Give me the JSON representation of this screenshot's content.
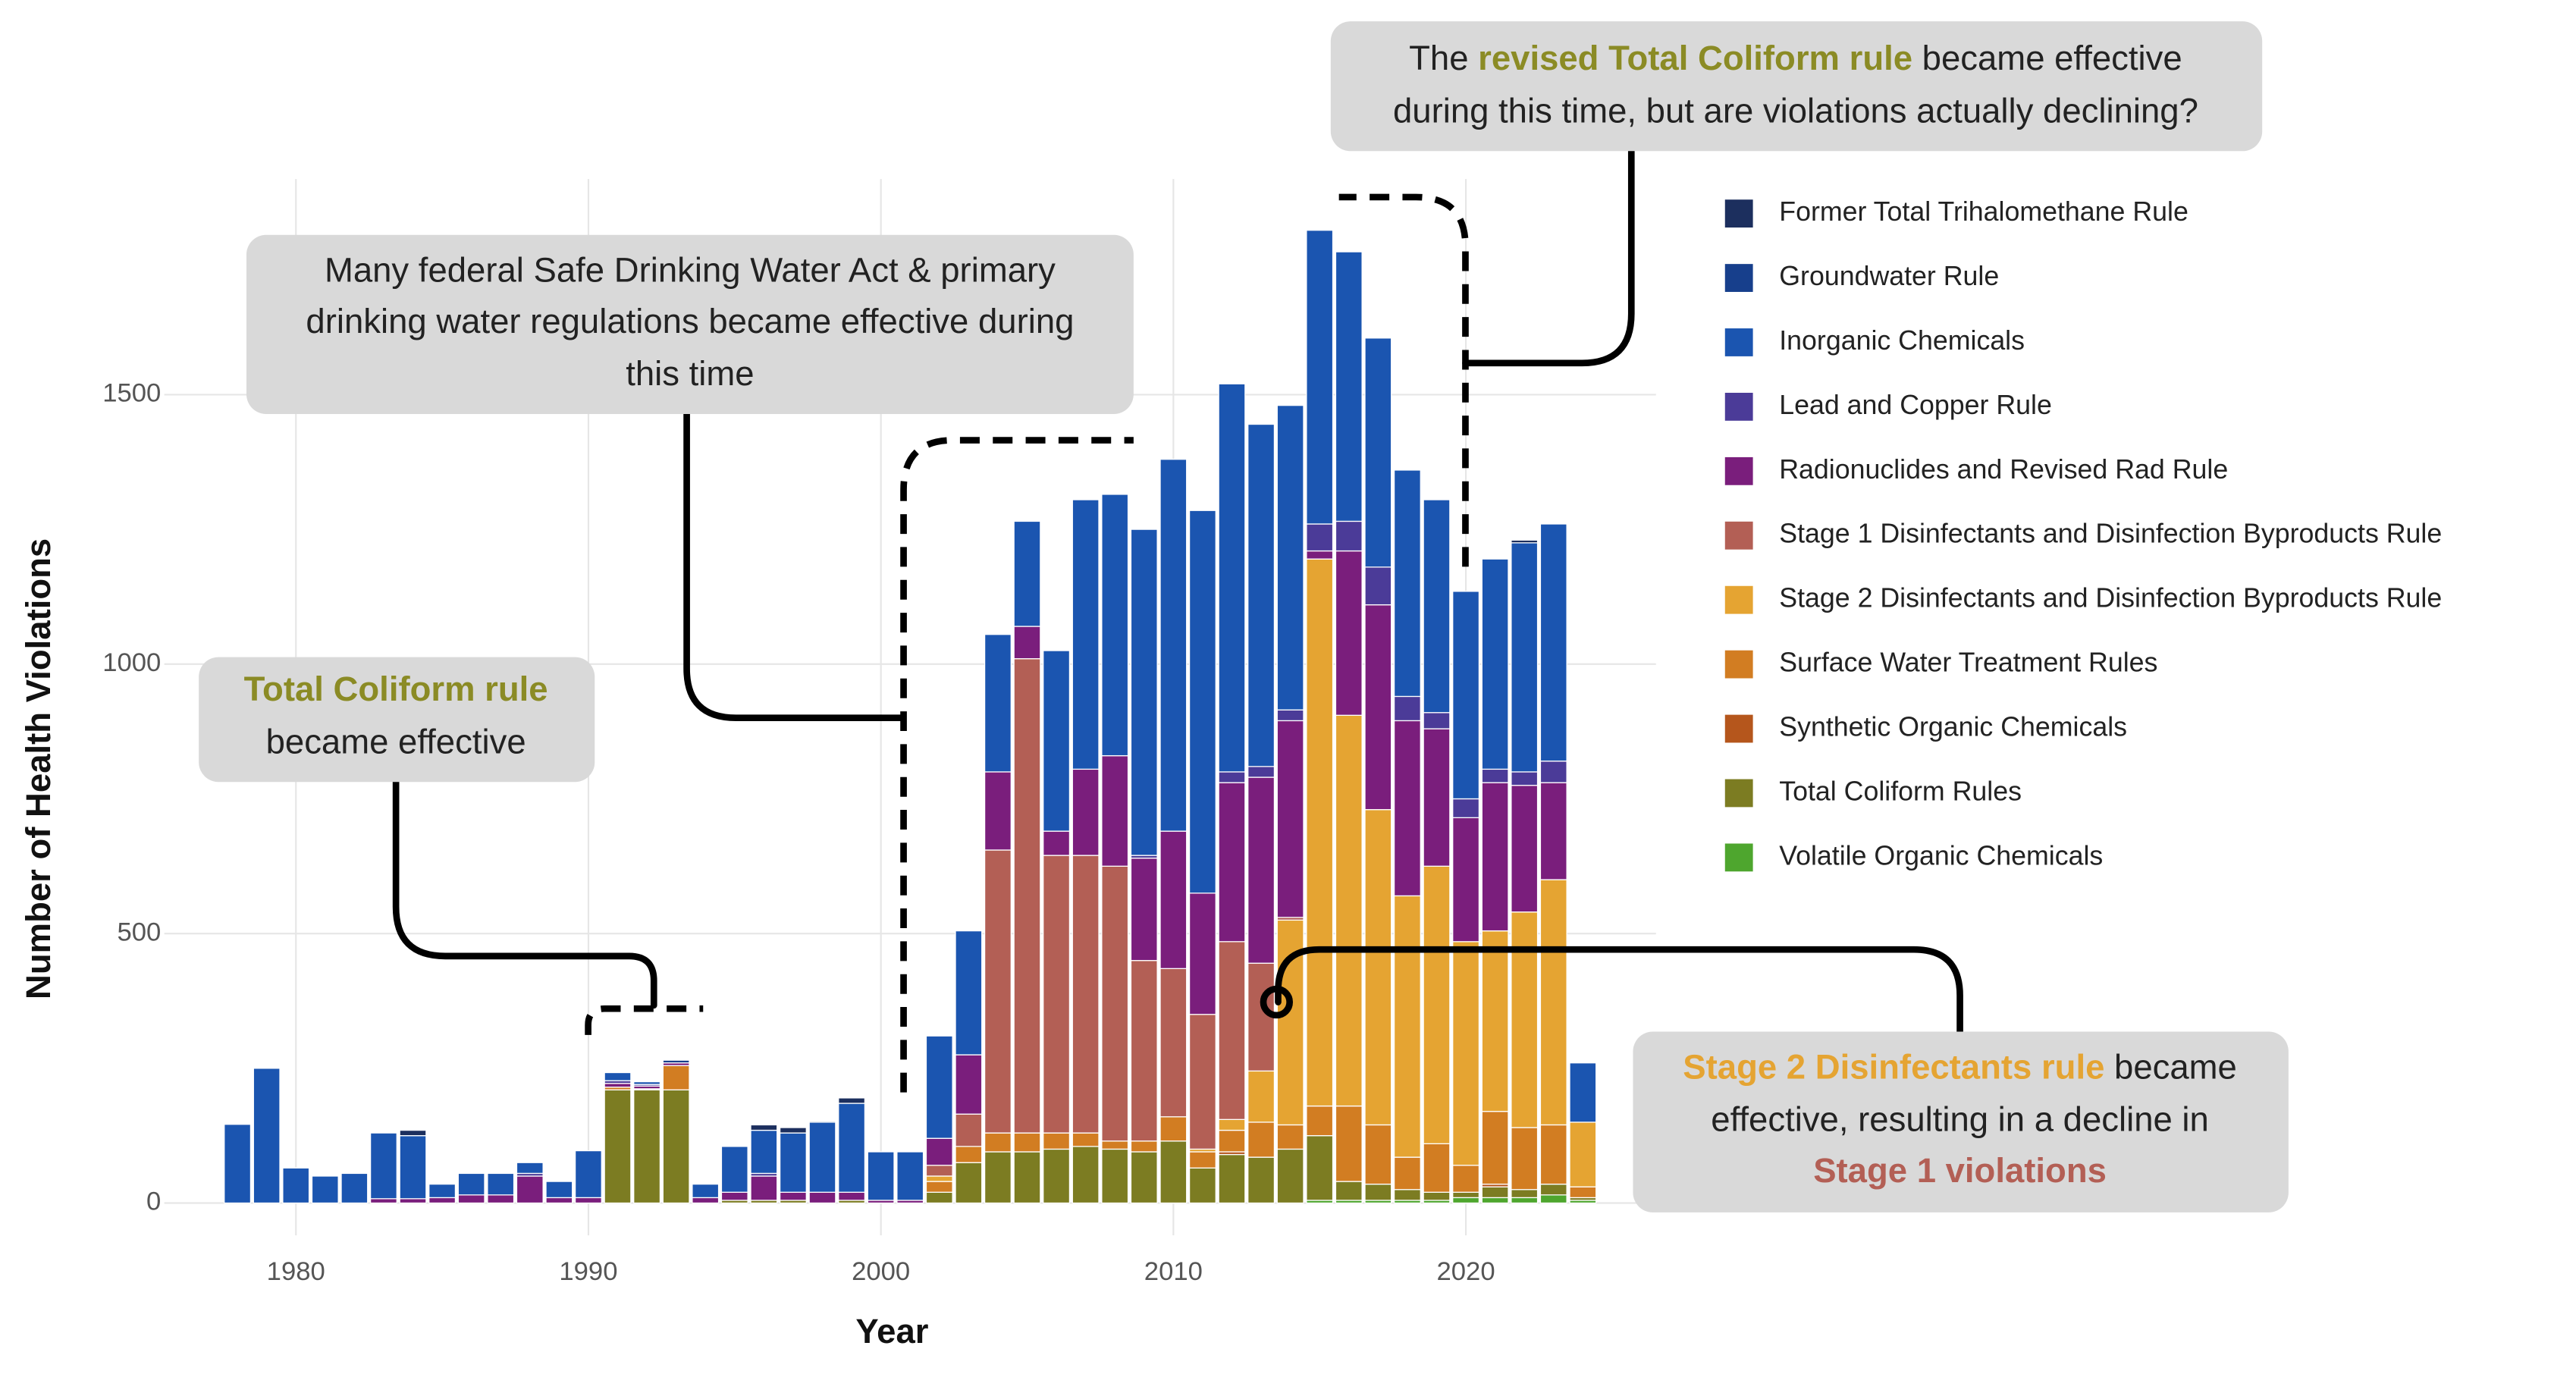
{
  "chart_data": {
    "type": "bar",
    "stacked": true,
    "x_label": "Year",
    "y_label": "Number of Health Violations",
    "x": [
      1978,
      1979,
      1980,
      1981,
      1982,
      1983,
      1984,
      1985,
      1986,
      1987,
      1988,
      1989,
      1990,
      1991,
      1992,
      1993,
      1994,
      1995,
      1996,
      1997,
      1998,
      1999,
      2000,
      2001,
      2002,
      2003,
      2004,
      2005,
      2006,
      2007,
      2008,
      2009,
      2010,
      2011,
      2012,
      2013,
      2014,
      2015,
      2016,
      2017,
      2018,
      2019,
      2020,
      2021,
      2022,
      2023,
      2024
    ],
    "xlim": [
      1975.5,
      2026.5
    ],
    "xticks": [
      1980,
      1990,
      2000,
      2010,
      2020
    ],
    "ylim": [
      -60,
      1900
    ],
    "yticks": [
      0,
      500,
      1000,
      1500
    ],
    "grid": true,
    "legend": "right",
    "series": [
      {
        "name": "Former Total Trihalomethane Rule",
        "color": "#1c2f5e",
        "values": [
          0,
          0,
          0,
          0,
          0,
          0,
          10,
          0,
          0,
          0,
          0,
          0,
          0,
          0,
          0,
          0,
          0,
          0,
          10,
          10,
          2,
          10,
          0,
          0,
          0,
          0,
          0,
          0,
          0,
          0,
          0,
          0,
          0,
          0,
          0,
          0,
          0,
          0,
          0,
          0,
          0,
          0,
          0,
          0,
          5,
          0,
          0
        ]
      },
      {
        "name": "Groundwater Rule",
        "color": "#173f8c",
        "values": [
          0,
          0,
          0,
          0,
          0,
          0,
          0,
          0,
          0,
          0,
          0,
          0,
          0,
          0,
          0,
          5,
          0,
          0,
          0,
          0,
          0,
          0,
          0,
          0,
          0,
          0,
          0,
          0,
          0,
          0,
          0,
          0,
          0,
          0,
          0,
          0,
          0,
          0,
          0,
          0,
          0,
          0,
          0,
          0,
          0,
          0,
          0
        ]
      },
      {
        "name": "Inorganic Chemicals",
        "color": "#1b55b0",
        "values": [
          146,
          250,
          65,
          50,
          55,
          122,
          117,
          25,
          40,
          40,
          20,
          30,
          87,
          15,
          5,
          0,
          25,
          85,
          80,
          110,
          130,
          165,
          90,
          90,
          190,
          230,
          255,
          195,
          335,
          500,
          485,
          605,
          690,
          710,
          720,
          635,
          565,
          545,
          500,
          425,
          420,
          395,
          385,
          390,
          425,
          440,
          110
        ]
      },
      {
        "name": "Lead and Copper Rule",
        "color": "#4b3b98",
        "values": [
          0,
          0,
          0,
          0,
          0,
          0,
          0,
          0,
          0,
          0,
          5,
          0,
          0,
          5,
          3,
          0,
          0,
          0,
          5,
          0,
          0,
          0,
          0,
          0,
          0,
          0,
          0,
          0,
          0,
          0,
          0,
          5,
          0,
          0,
          20,
          20,
          20,
          50,
          55,
          70,
          45,
          30,
          35,
          25,
          25,
          40,
          0
        ]
      },
      {
        "name": "Radionuclides and Revised Rad Rule",
        "color": "#7a1e7c",
        "values": [
          0,
          0,
          0,
          0,
          0,
          8,
          8,
          10,
          15,
          15,
          50,
          10,
          10,
          7,
          5,
          5,
          10,
          15,
          45,
          15,
          20,
          15,
          5,
          5,
          50,
          110,
          145,
          60,
          45,
          160,
          205,
          190,
          255,
          225,
          295,
          345,
          365,
          15,
          305,
          380,
          325,
          255,
          230,
          275,
          235,
          180,
          0
        ]
      },
      {
        "name": "Stage 1 Disinfectants and Disinfection Byproducts Rule",
        "color": "#b35f55",
        "values": [
          0,
          0,
          0,
          0,
          0,
          0,
          0,
          0,
          0,
          0,
          0,
          0,
          0,
          0,
          0,
          0,
          0,
          0,
          0,
          0,
          0,
          0,
          0,
          0,
          20,
          60,
          525,
          880,
          515,
          515,
          510,
          335,
          275,
          250,
          330,
          200,
          5,
          0,
          0,
          0,
          0,
          0,
          0,
          0,
          0,
          0,
          0
        ]
      },
      {
        "name": "Stage 2 Disinfectants and Disinfection Byproducts Rule",
        "color": "#e5a432",
        "values": [
          0,
          0,
          0,
          0,
          0,
          0,
          0,
          0,
          0,
          0,
          0,
          0,
          0,
          0,
          0,
          0,
          0,
          0,
          0,
          0,
          0,
          0,
          0,
          0,
          10,
          0,
          0,
          0,
          0,
          0,
          0,
          0,
          0,
          5,
          20,
          95,
          380,
          1015,
          725,
          585,
          485,
          515,
          415,
          335,
          400,
          455,
          120
        ]
      },
      {
        "name": "Surface Water Treatment Rules",
        "color": "#d27d22",
        "values": [
          0,
          0,
          0,
          0,
          0,
          0,
          0,
          0,
          0,
          0,
          0,
          0,
          0,
          5,
          2,
          45,
          0,
          0,
          0,
          0,
          0,
          0,
          0,
          0,
          20,
          30,
          35,
          35,
          30,
          25,
          15,
          20,
          45,
          30,
          40,
          65,
          45,
          55,
          140,
          110,
          60,
          90,
          50,
          135,
          115,
          110,
          20
        ]
      },
      {
        "name": "Synthetic Organic Chemicals",
        "color": "#b5561c",
        "values": [
          0,
          0,
          0,
          0,
          0,
          0,
          0,
          0,
          0,
          0,
          0,
          0,
          0,
          0,
          0,
          0,
          0,
          0,
          0,
          0,
          0,
          0,
          0,
          0,
          0,
          0,
          0,
          0,
          0,
          0,
          0,
          0,
          0,
          0,
          5,
          0,
          0,
          0,
          0,
          0,
          0,
          0,
          0,
          5,
          0,
          0,
          0
        ]
      },
      {
        "name": "Total Coliform Rules",
        "color": "#7c7c22",
        "values": [
          0,
          0,
          0,
          0,
          0,
          0,
          0,
          0,
          0,
          0,
          0,
          0,
          0,
          210,
          210,
          210,
          0,
          5,
          5,
          5,
          0,
          5,
          0,
          0,
          20,
          75,
          95,
          95,
          100,
          105,
          100,
          95,
          115,
          65,
          90,
          85,
          100,
          120,
          35,
          30,
          20,
          15,
          10,
          20,
          15,
          20,
          5
        ]
      },
      {
        "name": "Volatile Organic Chemicals",
        "color": "#4ea62e",
        "values": [
          0,
          0,
          0,
          0,
          0,
          0,
          0,
          0,
          0,
          0,
          0,
          0,
          0,
          0,
          0,
          0,
          0,
          0,
          0,
          0,
          0,
          0,
          0,
          0,
          0,
          0,
          0,
          0,
          0,
          0,
          0,
          0,
          0,
          0,
          0,
          0,
          0,
          5,
          5,
          5,
          5,
          5,
          10,
          10,
          10,
          15,
          5
        ]
      }
    ],
    "annotations": [
      {
        "lines": [
          [
            {
              "text": "The "
            },
            {
              "text": "revised Total Coliform rule",
              "color": "#8b8b25"
            },
            {
              "text": " became effective"
            }
          ],
          [
            {
              "text": "during this time, but are violations actually declining?"
            }
          ]
        ]
      },
      {
        "lines": [
          [
            {
              "text": "Many federal Safe Drinking Water Act & primary"
            }
          ],
          [
            {
              "text": "drinking water regulations became effective during"
            }
          ],
          [
            {
              "text": "this time"
            }
          ]
        ]
      },
      {
        "lines": [
          [
            {
              "text": "Total Coliform rule",
              "color": "#8b8b25"
            }
          ],
          [
            {
              "text": "became effective"
            }
          ]
        ]
      },
      {
        "lines": [
          [
            {
              "text": "Stage 2 Disinfectants rule",
              "color": "#e5a432"
            },
            {
              "text": " became"
            }
          ],
          [
            {
              "text": "effective, resulting in a decline in"
            }
          ],
          [
            {
              "text": "Stage 1 violations",
              "color": "#b35f55"
            }
          ]
        ]
      }
    ]
  }
}
